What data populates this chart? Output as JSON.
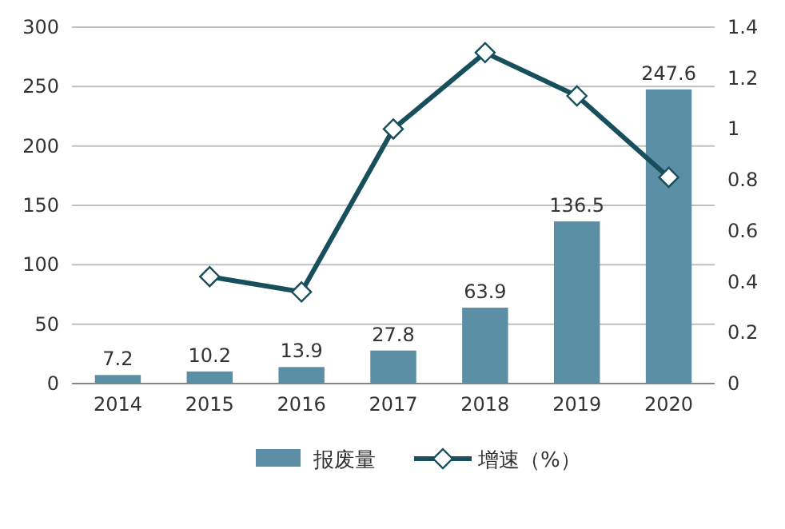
{
  "chart_data": {
    "type": "bar",
    "categories": [
      "2014",
      "2015",
      "2016",
      "2017",
      "2018",
      "2019",
      "2020"
    ],
    "series": [
      {
        "name": "报废量",
        "color": "#5b8fa6",
        "values": [
          7.2,
          10.2,
          13.9,
          27.8,
          63.9,
          136.5,
          247.6
        ],
        "value_labels": [
          "7.2",
          "10.2",
          "13.9",
          "27.8",
          "63.9",
          "136.5",
          "247.6"
        ]
      },
      {
        "name": "增速（%）",
        "type": "line",
        "axis": "y2",
        "color": "#174f5c",
        "marker": "diamond",
        "values": [
          null,
          0.42,
          0.36,
          1.0,
          1.3,
          1.13,
          0.81
        ]
      }
    ],
    "ylim": [
      0,
      300
    ],
    "yticks": [
      0,
      50,
      100,
      150,
      200,
      250,
      300
    ],
    "y2lim": [
      0,
      1.4
    ],
    "y2ticks": [
      0,
      0.2,
      0.4,
      0.6,
      0.8,
      1,
      1.2,
      1.4
    ],
    "grid": "y",
    "legend": "bottom"
  }
}
